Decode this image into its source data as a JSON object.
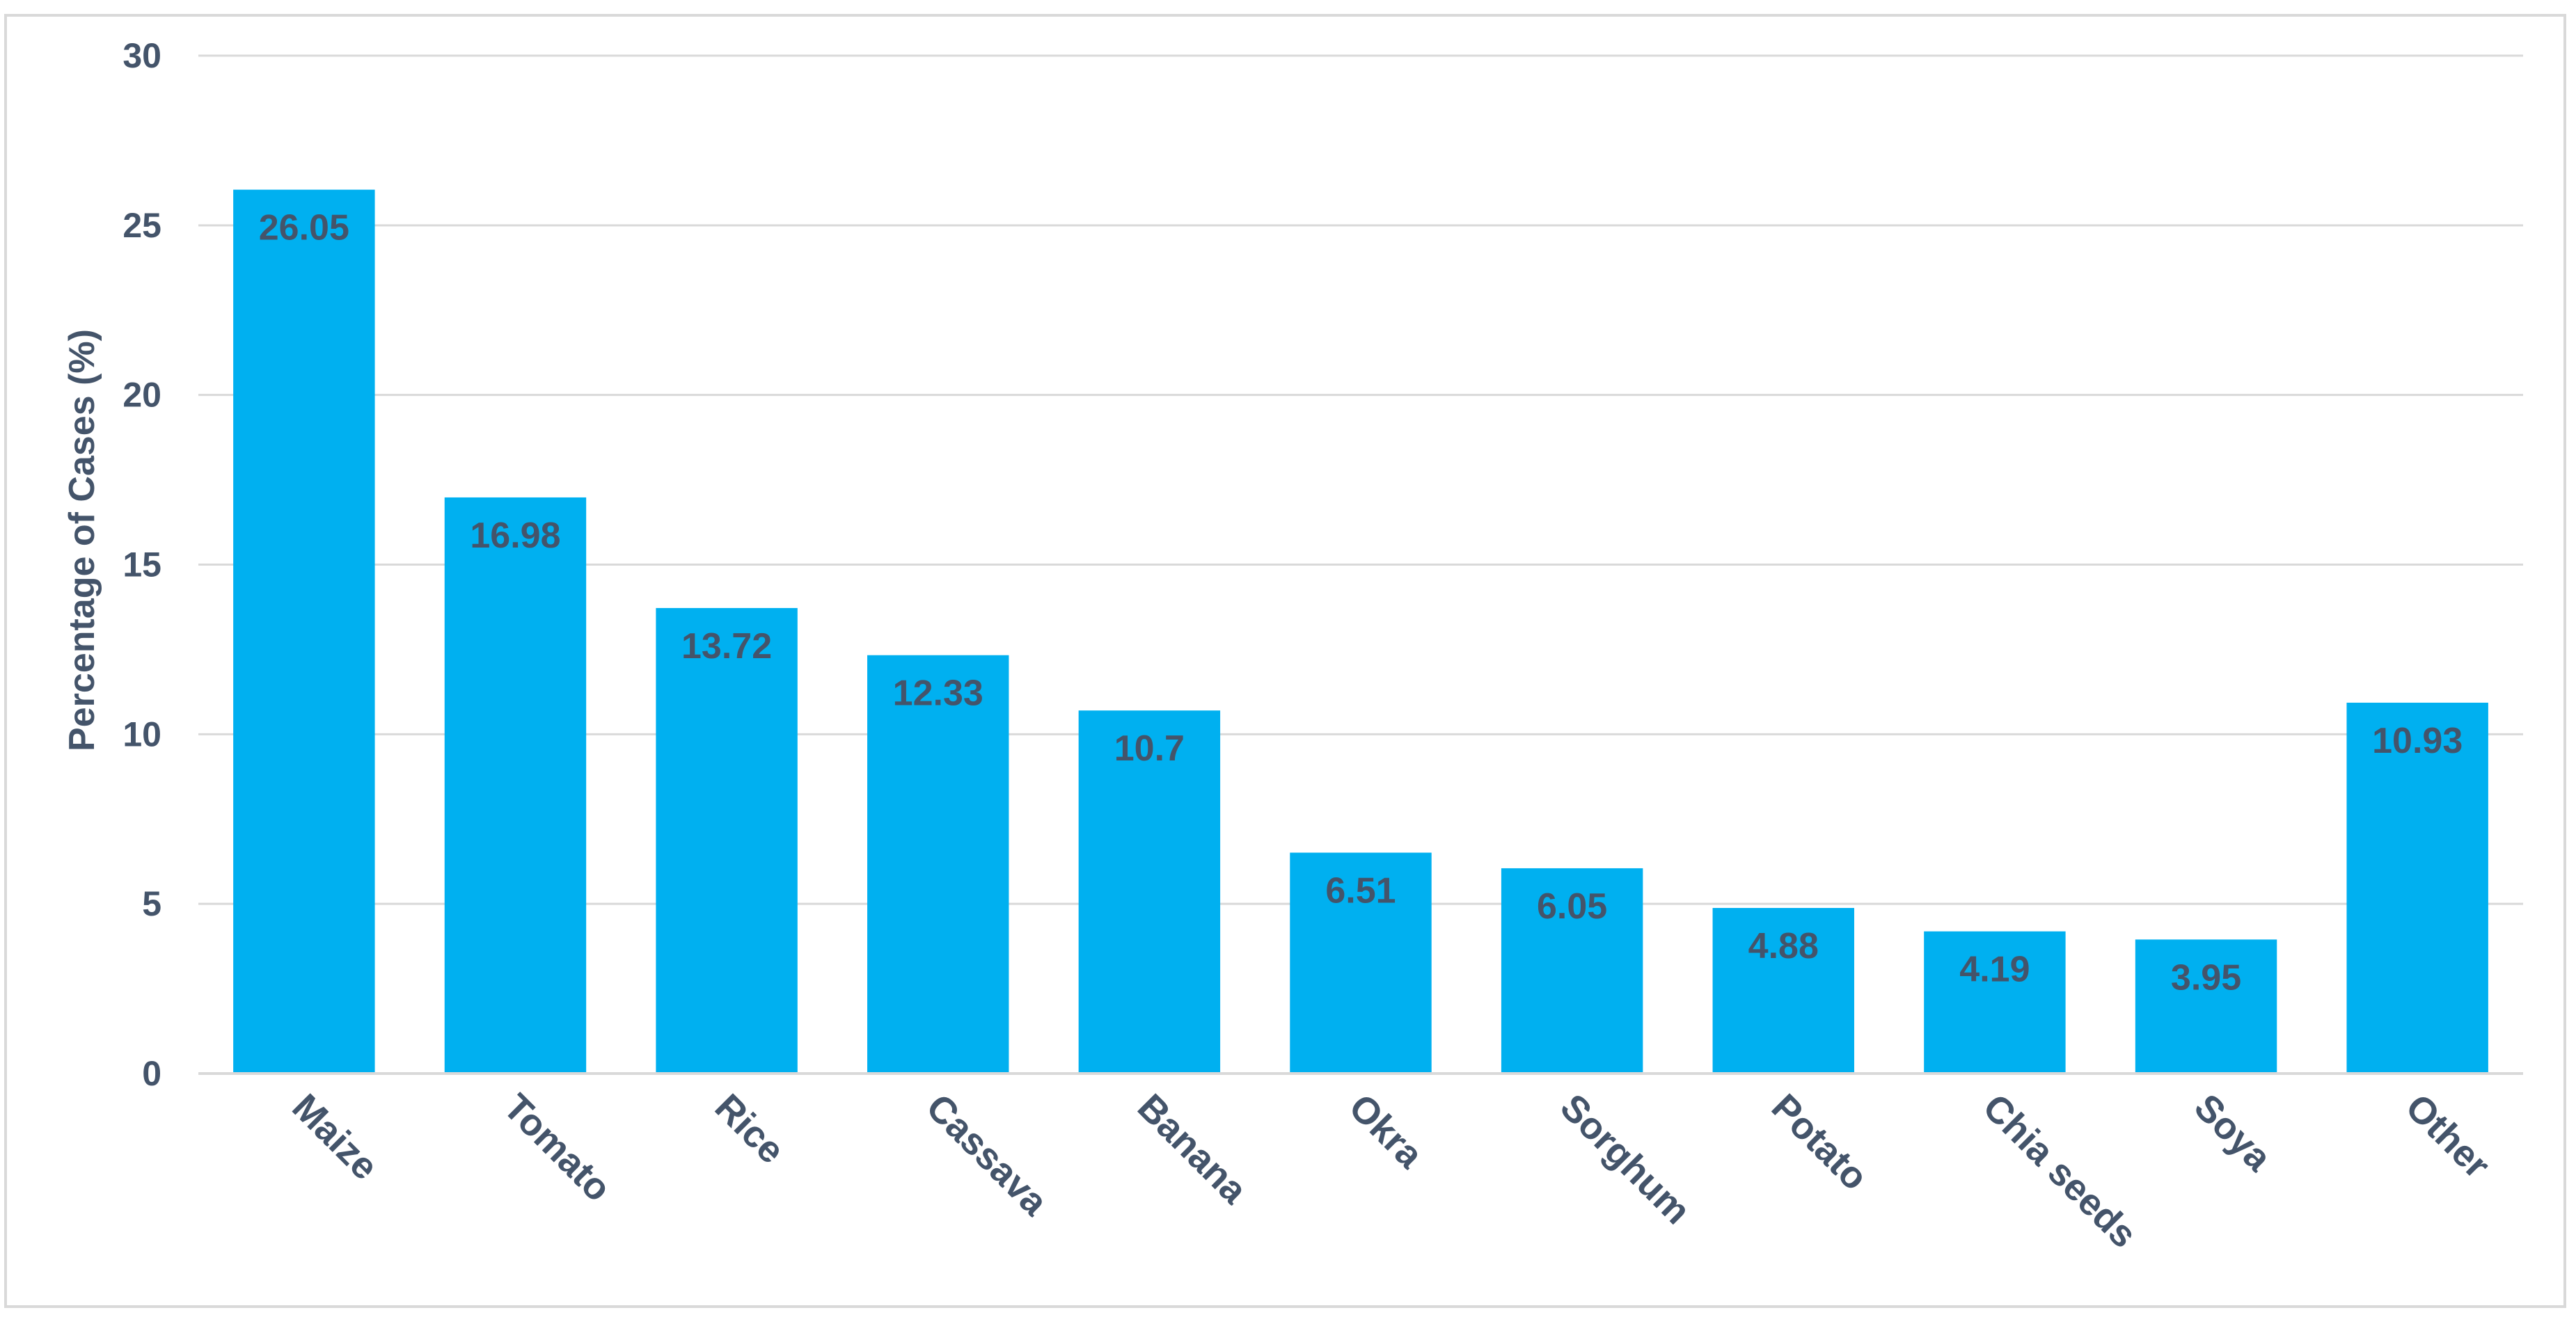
{
  "chart_data": {
    "type": "bar",
    "title": "",
    "xlabel": "",
    "ylabel": "Percentage of Cases (%)",
    "categories": [
      "Maize",
      "Tomato",
      "Rice",
      "Cassava",
      "Banana",
      "Okra",
      "Sorghum",
      "Potato",
      "Chia seeds",
      "Soya",
      "Other"
    ],
    "values": [
      26.05,
      16.98,
      13.72,
      12.33,
      10.7,
      6.51,
      6.05,
      4.88,
      4.19,
      3.95,
      10.93
    ],
    "value_labels": [
      "26.05",
      "16.98",
      "13.72",
      "12.33",
      "10.7",
      "6.51",
      "6.05",
      "4.88",
      "4.19",
      "3.95",
      "10.93"
    ],
    "ylim": [
      0,
      30
    ],
    "yticks": [
      "0",
      "5",
      "10",
      "15",
      "20",
      "25",
      "30"
    ],
    "grid": true,
    "legend": "none",
    "colors": {
      "bar": "#00b0f0",
      "text": "#44546a",
      "grid": "#d9d9d9",
      "frame": "#d9d9d9"
    }
  }
}
